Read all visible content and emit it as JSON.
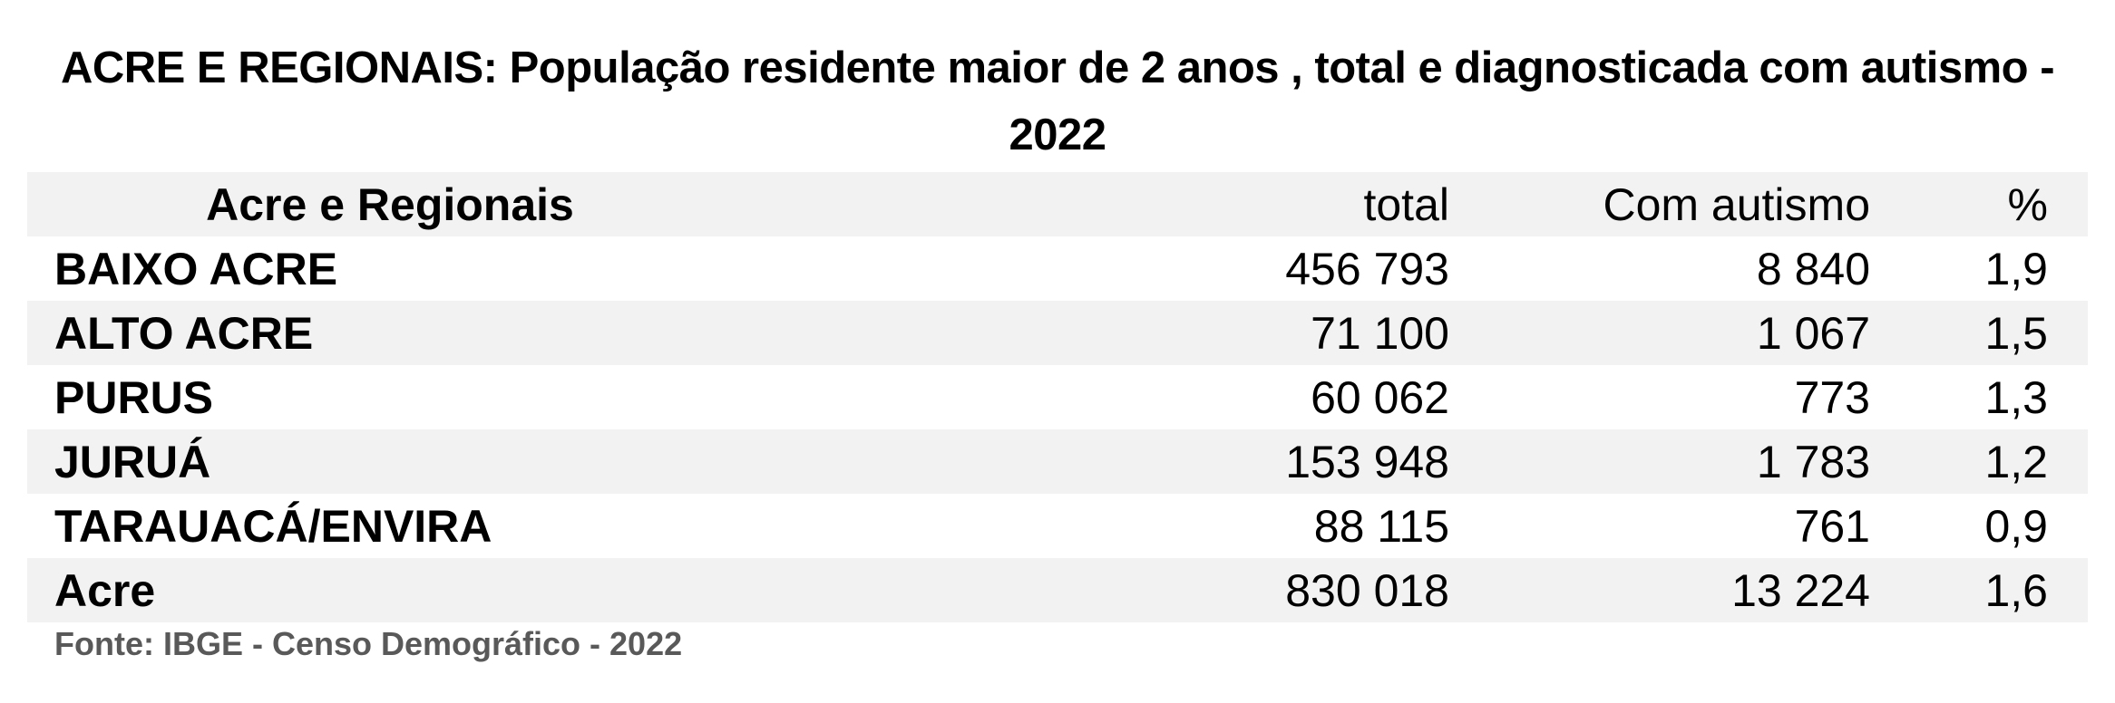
{
  "chart_data": {
    "type": "table",
    "title": "ACRE E REGIONAIS: População residente maior de 2 anos , total e diagnosticada com autismo - 2022",
    "columns": [
      "Acre e Regionais",
      "total",
      "Com autismo",
      "%"
    ],
    "rows": [
      {
        "name": "BAIXO ACRE",
        "total": "456 793",
        "autismo": "8 840",
        "pct": "1,9"
      },
      {
        "name": "ALTO ACRE",
        "total": "71 100",
        "autismo": "1 067",
        "pct": "1,5"
      },
      {
        "name": "PURUS",
        "total": "60 062",
        "autismo": "773",
        "pct": "1,3"
      },
      {
        "name": "JURUÁ",
        "total": "153 948",
        "autismo": "1 783",
        "pct": "1,2"
      },
      {
        "name": "TARAUACÁ/ENVIRA",
        "total": "88 115",
        "autismo": "761",
        "pct": "0,9"
      },
      {
        "name": "Acre",
        "total": "830 018",
        "autismo": "13 224",
        "pct": "1,6"
      }
    ],
    "source": "Fonte: IBGE - Censo Demográfico - 2022"
  },
  "colors": {
    "row_shade": "#f2f2f2",
    "source_text": "#595959"
  }
}
